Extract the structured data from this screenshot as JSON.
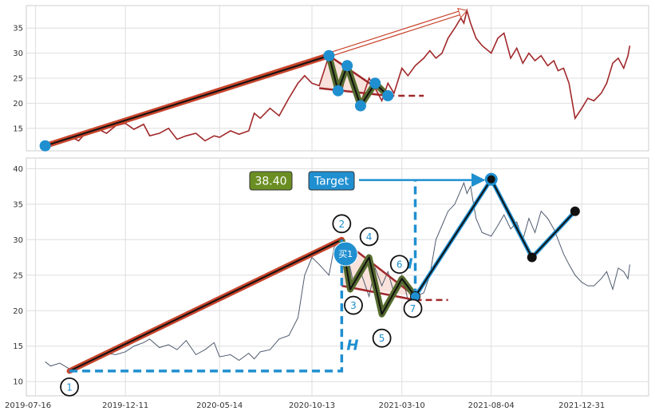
{
  "chart_data": [
    {
      "type": "line",
      "panel": "top",
      "title": "",
      "xlabel": "",
      "ylabel": "",
      "ylim": [
        10.5,
        39.5
      ],
      "yticks": [
        15,
        20,
        25,
        30,
        35
      ],
      "grid": true,
      "colors": {
        "price": "#a0282a",
        "trend": "#c8452c",
        "pattern": "#556b2f",
        "marker": "#1f8fd0"
      },
      "price_series": {
        "dates": [
          "2019-08-01",
          "2019-08-10",
          "2019-08-25",
          "2019-09-10",
          "2019-09-25",
          "2019-10-10",
          "2019-10-25",
          "2019-11-10",
          "2019-11-25",
          "2019-12-11",
          "2019-12-25",
          "2020-01-10",
          "2020-01-20",
          "2020-02-05",
          "2020-02-20",
          "2020-03-05",
          "2020-03-20",
          "2020-04-05",
          "2020-04-20",
          "2020-05-05",
          "2020-05-14",
          "2020-06-01",
          "2020-06-15",
          "2020-07-01",
          "2020-07-10",
          "2020-07-20",
          "2020-08-05",
          "2020-08-20",
          "2020-09-05",
          "2020-09-20",
          "2020-10-01",
          "2020-10-13",
          "2020-10-25",
          "2020-11-10",
          "2020-11-20",
          "2020-12-01",
          "2020-12-10",
          "2020-12-20",
          "2021-01-01",
          "2021-01-15",
          "2021-01-25",
          "2021-02-05",
          "2021-02-15",
          "2021-02-25",
          "2021-03-10",
          "2021-03-20",
          "2021-04-01",
          "2021-04-15",
          "2021-04-25",
          "2021-05-05",
          "2021-05-15",
          "2021-05-25",
          "2021-06-05",
          "2021-06-15",
          "2021-06-20",
          "2021-06-25",
          "2021-07-01",
          "2021-07-10",
          "2021-07-20",
          "2021-08-04",
          "2021-08-15",
          "2021-08-25",
          "2021-09-05",
          "2021-09-15",
          "2021-09-25",
          "2021-10-05",
          "2021-10-15",
          "2021-10-25",
          "2021-11-05",
          "2021-11-15",
          "2021-11-22",
          "2021-12-01",
          "2021-12-10",
          "2021-12-20",
          "2021-12-31",
          "2022-01-10",
          "2022-01-20",
          "2022-02-01",
          "2022-02-10",
          "2022-02-20",
          "2022-03-01",
          "2022-03-10",
          "2022-03-17",
          "2022-03-20"
        ],
        "values": [
          11.5,
          12.0,
          12.8,
          13.5,
          12.5,
          14.5,
          15.0,
          14.0,
          15.5,
          16.0,
          14.8,
          15.8,
          13.5,
          14.0,
          15.0,
          12.8,
          13.5,
          14.0,
          12.5,
          13.5,
          13.2,
          14.5,
          13.8,
          14.5,
          18.0,
          17.0,
          19.0,
          17.5,
          21.0,
          24.0,
          25.5,
          24.0,
          23.5,
          29.5,
          25.0,
          22.5,
          27.0,
          23.0,
          20.0,
          25.0,
          23.0,
          20.5,
          24.0,
          22.0,
          27.0,
          25.5,
          27.5,
          29.0,
          30.5,
          29.0,
          30.0,
          33.0,
          35.0,
          37.0,
          36.0,
          38.5,
          36.0,
          33.0,
          31.5,
          30.0,
          33.0,
          34.0,
          29.0,
          31.0,
          28.0,
          30.0,
          28.5,
          29.5,
          27.5,
          28.5,
          26.5,
          27.0,
          24.0,
          17.0,
          19.0,
          21.0,
          20.5,
          22.0,
          24.0,
          28.0,
          29.0,
          27.0,
          29.5,
          31.5
        ]
      },
      "trendline": {
        "from": {
          "x": "2019-08-01",
          "y": 11.5
        },
        "to": {
          "x": "2020-11-10",
          "y": 29.5
        }
      },
      "projection": {
        "from": {
          "x": "2019-08-01",
          "y": 11.5
        },
        "to": {
          "x": "2021-06-25",
          "y": 38.5
        }
      },
      "pattern_points": [
        {
          "x": "2020-11-10",
          "y": 29.5
        },
        {
          "x": "2020-11-25",
          "y": 22.5
        },
        {
          "x": "2020-12-10",
          "y": 27.5
        },
        {
          "x": "2021-01-01",
          "y": 19.5
        },
        {
          "x": "2021-01-25",
          "y": 24.0
        },
        {
          "x": "2021-02-15",
          "y": 21.5
        }
      ],
      "upper_boundary": {
        "from": {
          "x": "2020-11-10",
          "y": 29.5
        },
        "to": {
          "x": "2021-02-15",
          "y": 21.5
        }
      },
      "lower_boundary": {
        "from": {
          "x": "2020-10-25",
          "y": 23.0
        },
        "to": {
          "x": "2021-02-15",
          "y": 21.5
        }
      },
      "lower_extension": {
        "from": {
          "x": "2021-02-15",
          "y": 21.5
        },
        "to": {
          "x": "2021-04-15",
          "y": 21.5
        }
      }
    },
    {
      "type": "line",
      "panel": "bottom",
      "title": "",
      "xlabel": "",
      "ylabel": "",
      "ylim": [
        8,
        41.5
      ],
      "yticks": [
        10,
        15,
        20,
        25,
        30,
        35,
        40
      ],
      "x_ticks": [
        "2019-07-16",
        "2019-12-11",
        "2020-05-14",
        "2020-10-13",
        "2021-03-10",
        "2021-08-04",
        "2021-12-31"
      ],
      "grid": true,
      "colors": {
        "price": "#4f5b6e",
        "trend": "#c8452c",
        "pattern": "#556b2f",
        "marker": "#1f8fd0",
        "measure": "#1f8fd0",
        "boundary": "#a0282a"
      },
      "price_series": {
        "dates": [
          "2019-08-01",
          "2019-08-10",
          "2019-08-25",
          "2019-09-10",
          "2019-09-25",
          "2019-10-10",
          "2019-10-25",
          "2019-11-10",
          "2019-11-25",
          "2019-12-11",
          "2019-12-25",
          "2020-01-10",
          "2020-01-20",
          "2020-02-05",
          "2020-02-20",
          "2020-03-05",
          "2020-03-20",
          "2020-04-05",
          "2020-04-20",
          "2020-05-05",
          "2020-05-14",
          "2020-06-01",
          "2020-06-15",
          "2020-07-01",
          "2020-07-10",
          "2020-07-20",
          "2020-08-05",
          "2020-08-20",
          "2020-09-05",
          "2020-09-20",
          "2020-10-01",
          "2020-10-13",
          "2020-10-25",
          "2020-11-10",
          "2020-11-20",
          "2020-12-01",
          "2020-12-10",
          "2020-12-20",
          "2021-01-01",
          "2021-01-15",
          "2021-01-25",
          "2021-02-05",
          "2021-02-15",
          "2021-02-25",
          "2021-03-10",
          "2021-03-20",
          "2021-04-01",
          "2021-04-15",
          "2021-04-25",
          "2021-05-05",
          "2021-05-15",
          "2021-05-25",
          "2021-06-05",
          "2021-06-15",
          "2021-06-20",
          "2021-06-25",
          "2021-07-01",
          "2021-07-10",
          "2021-07-20",
          "2021-08-04",
          "2021-08-15",
          "2021-08-25",
          "2021-09-05",
          "2021-09-15",
          "2021-09-25",
          "2021-10-05",
          "2021-10-15",
          "2021-10-25",
          "2021-11-05",
          "2021-11-15",
          "2021-11-22",
          "2021-12-01",
          "2021-12-10",
          "2021-12-20",
          "2021-12-31",
          "2022-01-10",
          "2022-01-20",
          "2022-02-01",
          "2022-02-10",
          "2022-02-20",
          "2022-03-01",
          "2022-03-10",
          "2022-03-17",
          "2022-03-20"
        ],
        "values": [
          12.8,
          12.2,
          12.6,
          11.8,
          12.2,
          12.8,
          13.5,
          14.0,
          13.8,
          14.2,
          15.0,
          15.5,
          16.0,
          14.8,
          15.2,
          14.5,
          15.8,
          13.8,
          14.5,
          15.5,
          13.5,
          13.8,
          13.0,
          14.0,
          13.2,
          14.2,
          14.5,
          16.0,
          16.5,
          19.0,
          25.0,
          27.5,
          26.5,
          25.0,
          29.5,
          26.0,
          28.0,
          24.0,
          25.5,
          22.0,
          26.0,
          23.5,
          25.5,
          22.5,
          25.0,
          21.5,
          22.0,
          22.5,
          25.0,
          30.0,
          32.0,
          34.0,
          35.0,
          37.0,
          38.0,
          36.5,
          37.5,
          33.0,
          31.0,
          30.5,
          32.0,
          33.5,
          31.5,
          32.5,
          30.0,
          33.0,
          31.0,
          34.0,
          33.0,
          31.5,
          30.0,
          28.0,
          26.5,
          25.0,
          24.0,
          23.5,
          23.5,
          24.5,
          25.5,
          23.0,
          26.0,
          25.5,
          24.5,
          26.5
        ]
      },
      "trendline": {
        "from": {
          "x": "2019-09-10",
          "y": 11.5
        },
        "to": {
          "x": "2020-12-01",
          "y": 30.0
        }
      },
      "pattern_points": [
        {
          "label": "2",
          "x": "2020-12-01",
          "y": 30.0
        },
        {
          "label": "3",
          "x": "2020-12-15",
          "y": 23.0
        },
        {
          "label": "4",
          "x": "2021-01-15",
          "y": 27.5
        },
        {
          "label": "5",
          "x": "2021-02-05",
          "y": 19.5
        },
        {
          "label": "6",
          "x": "2021-03-10",
          "y": 24.5
        },
        {
          "label": "7",
          "x": "2021-04-01",
          "y": 22.0
        }
      ],
      "upper_boundary": {
        "from": {
          "x": "2020-12-01",
          "y": 30.0
        },
        "to": {
          "x": "2021-04-01",
          "y": 22.0
        }
      },
      "lower_boundary": {
        "from": {
          "x": "2020-12-01",
          "y": 23.5
        },
        "to": {
          "x": "2021-04-01",
          "y": 21.5
        }
      },
      "lower_extension": {
        "from": {
          "x": "2021-04-01",
          "y": 21.5
        },
        "to": {
          "x": "2021-05-25",
          "y": 21.5
        }
      },
      "start_point": {
        "label": "1",
        "x": "2019-09-10",
        "y": 11.5
      },
      "height_measures": [
        {
          "label": "H",
          "from": {
            "x": "2019-09-10",
            "y": 11.5
          },
          "corner": {
            "x": "2020-12-01",
            "y": 11.5
          },
          "to": {
            "x": "2020-12-01",
            "y": 30.0
          }
        },
        {
          "label": "H",
          "from": {
            "x": "2021-04-01",
            "y": 22.0
          },
          "corner": {
            "x": "2021-04-01",
            "y": 38.4
          },
          "to": {
            "x": "2021-08-04",
            "y": 38.4
          }
        }
      ],
      "buy_signal": {
        "label": "买1",
        "x": "2020-12-10",
        "y": 28.0
      },
      "target_label": "Target",
      "target_value_label": "38.40",
      "target_value": 38.4,
      "target_arrow": {
        "from_y": 38.4,
        "to": {
          "x": "2021-08-04",
          "y": 38.4
        }
      },
      "projection_path": [
        {
          "x": "2021-04-01",
          "y": 22.0
        },
        {
          "x": "2021-08-04",
          "y": 38.5
        },
        {
          "x": "2021-10-10",
          "y": 27.5
        },
        {
          "x": "2021-12-20",
          "y": 34.0
        }
      ]
    }
  ]
}
